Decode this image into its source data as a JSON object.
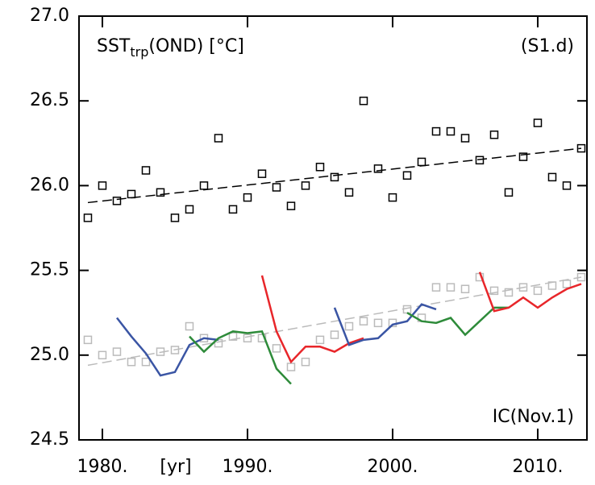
{
  "chart_data": {
    "type": "scatter",
    "title_main": "SST",
    "title_sub": "trp",
    "title_rest": "(OND) [°C]",
    "panel_label": "(S1.d)",
    "annotation": "IC(Nov.1)",
    "x_label": "[yr]",
    "xlim": [
      1978.39,
      2013.39
    ],
    "ylim": [
      24.5,
      27.0
    ],
    "xticks": [
      {
        "value": 1980,
        "label": "1980."
      },
      {
        "value": 1990,
        "label": "1990."
      },
      {
        "value": 2000,
        "label": "2000."
      },
      {
        "value": 2010,
        "label": "2010."
      }
    ],
    "yticks": [
      24.5,
      {
        "value": 25,
        "label": "25.0"
      },
      25.5,
      {
        "value": 26,
        "label": "26.0"
      },
      26.5,
      {
        "value": 27,
        "label": "27.0"
      }
    ],
    "series": [
      {
        "style": "marker",
        "color": "#000000",
        "x": [
          1979,
          1980,
          1981,
          1982,
          1983,
          1984,
          1985,
          1986,
          1987,
          1988,
          1989,
          1990,
          1991,
          1992,
          1993,
          1994,
          1995,
          1996,
          1997,
          1998,
          1999,
          2000,
          2001,
          2002,
          2003,
          2004,
          2005,
          2006,
          2007,
          2008,
          2009,
          2010,
          2011,
          2012,
          2013
        ],
        "values": [
          25.81,
          26.0,
          25.91,
          25.95,
          26.09,
          25.96,
          25.81,
          25.86,
          26.0,
          26.28,
          25.86,
          25.93,
          26.07,
          25.99,
          25.88,
          26.0,
          26.11,
          26.05,
          25.96,
          26.5,
          26.1,
          25.93,
          26.06,
          26.14,
          26.32,
          26.32,
          26.28,
          26.15,
          26.3,
          25.96,
          26.17,
          26.37,
          26.05,
          26.0,
          26.22
        ]
      },
      {
        "style": "marker",
        "color": "#bbbbbb",
        "x": [
          1979,
          1980,
          1981,
          1982,
          1983,
          1984,
          1985,
          1986,
          1987,
          1988,
          1989,
          1990,
          1991,
          1992,
          1993,
          1994,
          1995,
          1996,
          1997,
          1998,
          1999,
          2000,
          2001,
          2002,
          2003,
          2004,
          2005,
          2006,
          2007,
          2008,
          2009,
          2010,
          2011,
          2012,
          2013
        ],
        "values": [
          25.09,
          25.0,
          25.02,
          24.96,
          24.96,
          25.02,
          25.03,
          25.17,
          25.1,
          25.07,
          25.11,
          25.1,
          25.1,
          25.04,
          24.93,
          24.96,
          25.09,
          25.12,
          25.17,
          25.2,
          25.19,
          25.19,
          25.27,
          25.22,
          25.4,
          25.4,
          25.39,
          25.46,
          25.38,
          25.37,
          25.4,
          25.38,
          25.41,
          25.42,
          25.46
        ]
      },
      {
        "style": "dashed",
        "color": "#000000",
        "x": [
          1979,
          2013
        ],
        "values": [
          25.9,
          26.22
        ]
      },
      {
        "style": "dashed",
        "color": "#bbbbbb",
        "x": [
          1979,
          2013
        ],
        "values": [
          24.94,
          25.46
        ]
      },
      {
        "style": "line",
        "color": "#3a55a4",
        "x": [
          1981,
          1982,
          1983,
          1984,
          1985,
          1986,
          1987,
          1988
        ],
        "values": [
          25.22,
          25.11,
          25.01,
          24.88,
          24.9,
          25.06,
          25.1,
          25.09
        ]
      },
      {
        "style": "line",
        "color": "#2e8b3a",
        "x": [
          1986,
          1987,
          1988,
          1989,
          1990,
          1991,
          1992,
          1993
        ],
        "values": [
          25.11,
          25.02,
          25.1,
          25.14,
          25.13,
          25.14,
          24.92,
          24.83
        ]
      },
      {
        "style": "line",
        "color": "#e8262a",
        "x": [
          1991,
          1992,
          1993,
          1994,
          1995,
          1996,
          1997,
          1998
        ],
        "values": [
          25.47,
          25.14,
          24.96,
          25.05,
          25.05,
          25.02,
          25.07,
          25.1
        ]
      },
      {
        "style": "line",
        "color": "#3a55a4",
        "x": [
          1996,
          1997,
          1998,
          1999,
          2000,
          2001,
          2002,
          2003
        ],
        "values": [
          25.28,
          25.06,
          25.09,
          25.1,
          25.18,
          25.2,
          25.3,
          25.27
        ]
      },
      {
        "style": "line",
        "color": "#2e8b3a",
        "x": [
          2001,
          2002,
          2003,
          2004,
          2005,
          2006,
          2007,
          2008
        ],
        "values": [
          25.25,
          25.2,
          25.19,
          25.22,
          25.12,
          25.2,
          25.28,
          25.28
        ]
      },
      {
        "style": "line",
        "color": "#e8262a",
        "x": [
          2006,
          2007,
          2008,
          2009,
          2010,
          2011,
          2012,
          2013
        ],
        "values": [
          25.49,
          25.26,
          25.28,
          25.34,
          25.28,
          25.34,
          25.39,
          25.42
        ]
      }
    ]
  }
}
